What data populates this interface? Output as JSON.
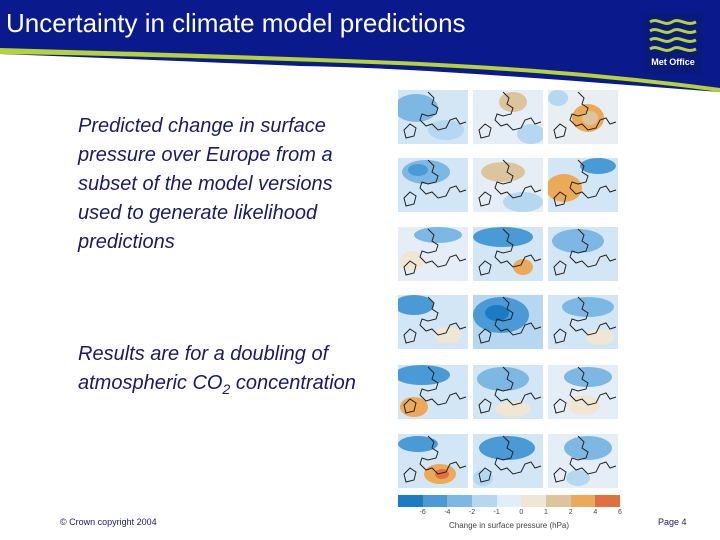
{
  "header": {
    "title": "Uncertainty in climate model predictions",
    "logo_text": "Met Office"
  },
  "body": {
    "para1": "Predicted change in surface pressure over Europe from a subset of the model versions used to generate likelihood predictions",
    "para2_prefix": "Results are for a doubling of atmospheric CO",
    "para2_subscript": "2",
    "para2_suffix": " concentration"
  },
  "figure": {
    "colorbar_label": "Change in surface pressure (hPa)",
    "colorbar_ticks": [
      "-6",
      "-4",
      "-2",
      "-1",
      "0",
      "1",
      "2",
      "4",
      "6"
    ],
    "colorbar_colors": [
      "#1a7cc4",
      "#4a9ad6",
      "#7db7e4",
      "#b6d7f0",
      "#dfeef8",
      "#efe6d4",
      "#dcc59c",
      "#ecaa58",
      "#e07040"
    ],
    "panel_count": 18
  },
  "footer": {
    "copyright": "© Crown copyright 2004",
    "page": "Page 4"
  },
  "colors": {
    "header_blue": "#0a1a8c",
    "accent_green": "#b5d334",
    "text_navy": "#1a1a66"
  }
}
